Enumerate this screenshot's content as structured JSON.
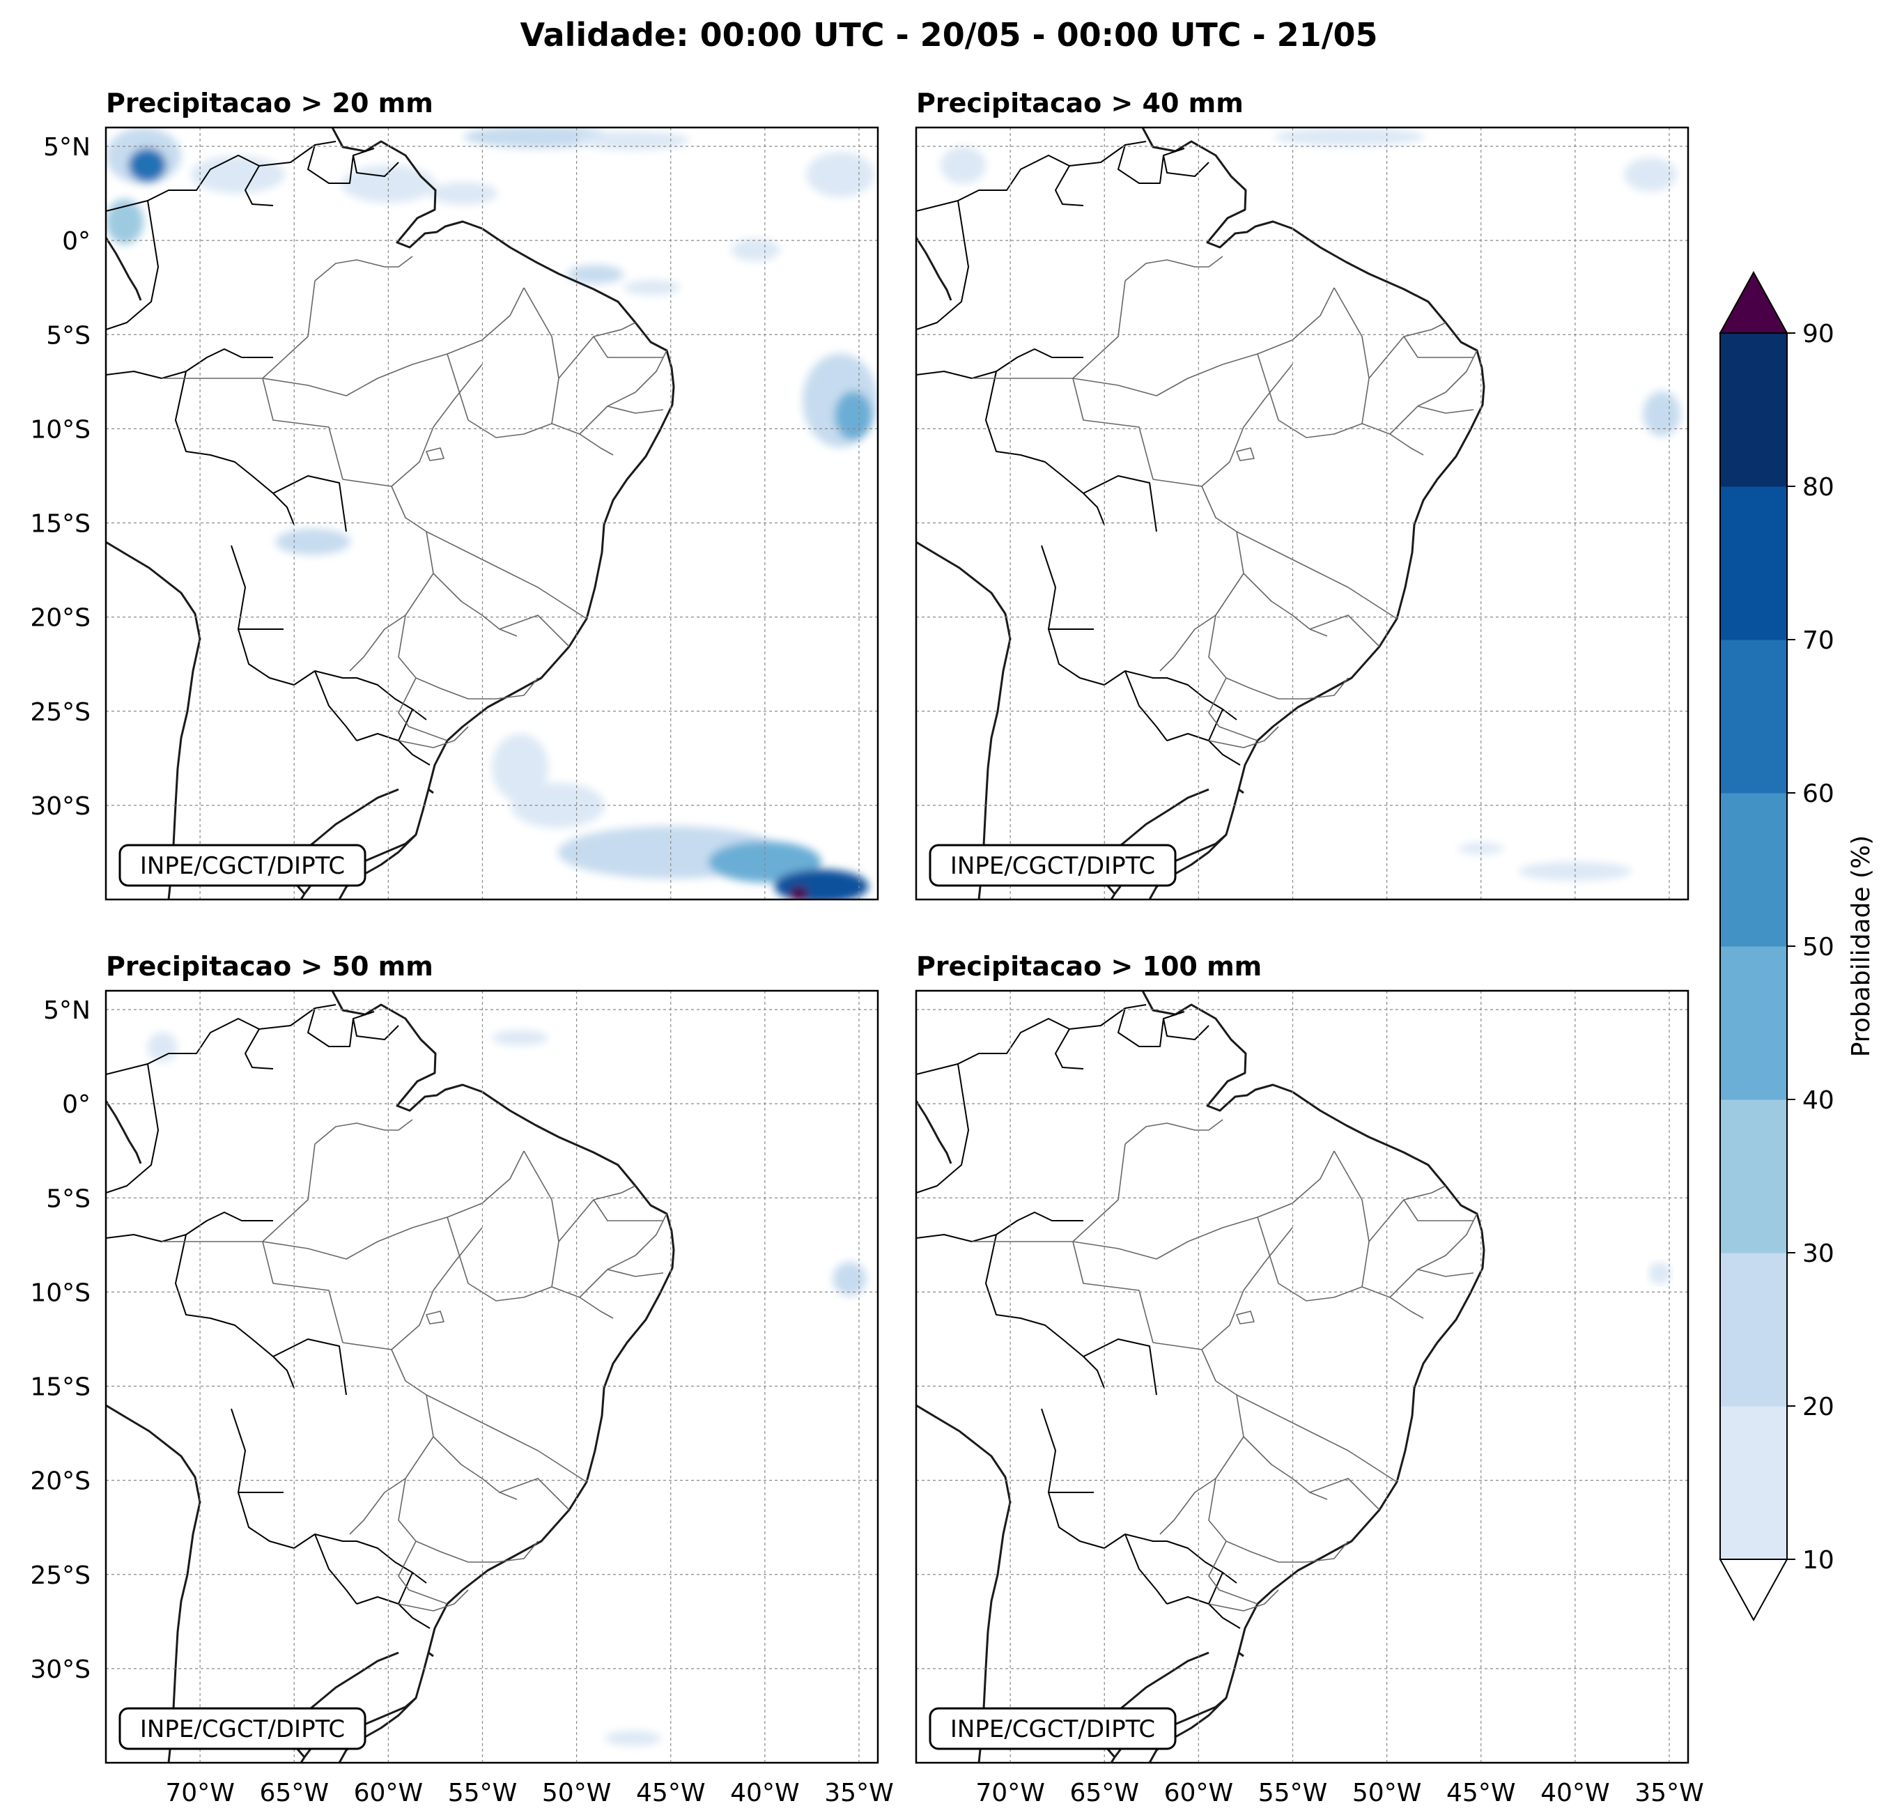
{
  "figure": {
    "title": "Validade: 00:00 UTC - 20/05 - 00:00 UTC - 21/05"
  },
  "panels": [
    {
      "id": "p20",
      "title": "Precipitacao > 20 mm",
      "credit": "INPE/CGCT/DIPTC"
    },
    {
      "id": "p40",
      "title": "Precipitacao > 40 mm",
      "credit": "INPE/CGCT/DIPTC"
    },
    {
      "id": "p50",
      "title": "Precipitacao > 50 mm",
      "credit": "INPE/CGCT/DIPTC"
    },
    {
      "id": "p100",
      "title": "Precipitacao > 100 mm",
      "credit": "INPE/CGCT/DIPTC"
    }
  ],
  "axes": {
    "lat_ticks": [
      5,
      0,
      -5,
      -10,
      -15,
      -20,
      -25,
      -30
    ],
    "lat_labels": [
      "5°N",
      "0°",
      "5°S",
      "10°S",
      "15°S",
      "20°S",
      "25°S",
      "30°S"
    ],
    "lon_ticks": [
      -70,
      -65,
      -60,
      -55,
      -50,
      -45,
      -40,
      -35
    ],
    "lon_labels": [
      "70°W",
      "65°W",
      "60°W",
      "55°W",
      "50°W",
      "45°W",
      "40°W",
      "35°W"
    ],
    "lon_range": [
      -75,
      -34
    ],
    "lat_range": [
      -35,
      6
    ],
    "gridlines": true
  },
  "colorbar": {
    "label": "Probabilidade (%)",
    "levels": [
      10,
      20,
      30,
      40,
      50,
      60,
      70,
      80,
      90
    ],
    "tick_labels": [
      "10",
      "20",
      "30",
      "40",
      "50",
      "60",
      "70",
      "80",
      "90"
    ],
    "colors": [
      "#dce8f5",
      "#c6dbef",
      "#9ecae1",
      "#6baed6",
      "#4292c6",
      "#2171b5",
      "#08519c",
      "#08306b"
    ],
    "under_color": "#ffffff",
    "over_color": "#4a0046",
    "extend": "both"
  },
  "precip_fields": {
    "p20": [
      {
        "lon": -73,
        "lat": 4.5,
        "rx": 2.0,
        "ry": 1.5,
        "level": 1
      },
      {
        "lon": -72.8,
        "lat": 4.0,
        "rx": 1.0,
        "ry": 0.9,
        "level": 5
      },
      {
        "lon": -74,
        "lat": 1.0,
        "rx": 1.0,
        "ry": 1.2,
        "level": 2
      },
      {
        "lon": -68,
        "lat": 3.5,
        "rx": 2.5,
        "ry": 1.0,
        "level": 0
      },
      {
        "lon": -60,
        "lat": 3.0,
        "rx": 2.5,
        "ry": 1.0,
        "level": 0
      },
      {
        "lon": -52,
        "lat": 5.5,
        "rx": 4.0,
        "ry": 0.6,
        "level": 1
      },
      {
        "lon": -47,
        "lat": 5.3,
        "rx": 3.0,
        "ry": 0.5,
        "level": 0
      },
      {
        "lon": -36,
        "lat": 3.5,
        "rx": 1.8,
        "ry": 1.2,
        "level": 0
      },
      {
        "lon": -56,
        "lat": 2.5,
        "rx": 1.8,
        "ry": 0.6,
        "level": 0
      },
      {
        "lon": -49,
        "lat": -1.8,
        "rx": 1.5,
        "ry": 0.5,
        "level": 1
      },
      {
        "lon": -46,
        "lat": -2.5,
        "rx": 1.5,
        "ry": 0.4,
        "level": 0
      },
      {
        "lon": -36,
        "lat": -8.5,
        "rx": 2.0,
        "ry": 2.5,
        "level": 1
      },
      {
        "lon": -35.3,
        "lat": -9.3,
        "rx": 1.0,
        "ry": 1.3,
        "level": 3
      },
      {
        "lon": -40.5,
        "lat": -0.5,
        "rx": 1.3,
        "ry": 0.6,
        "level": 0
      },
      {
        "lon": -64,
        "lat": -16,
        "rx": 2.0,
        "ry": 0.7,
        "level": 1
      },
      {
        "lon": -53,
        "lat": -28,
        "rx": 1.5,
        "ry": 1.8,
        "level": 0
      },
      {
        "lon": -51,
        "lat": -30,
        "rx": 2.5,
        "ry": 1.2,
        "level": 0
      },
      {
        "lon": -45,
        "lat": -32.5,
        "rx": 6.0,
        "ry": 1.4,
        "level": 1
      },
      {
        "lon": -40,
        "lat": -33,
        "rx": 3.0,
        "ry": 1.1,
        "level": 3
      },
      {
        "lon": -37,
        "lat": -34.3,
        "rx": 2.5,
        "ry": 0.9,
        "level": 6
      },
      {
        "lon": -38.2,
        "lat": -34.7,
        "rx": 0.5,
        "ry": 0.4,
        "level": 8
      }
    ],
    "p40": [
      {
        "lon": -72.5,
        "lat": 4.0,
        "rx": 1.2,
        "ry": 1.0,
        "level": 0
      },
      {
        "lon": -52,
        "lat": 5.5,
        "rx": 4.0,
        "ry": 0.5,
        "level": 0
      },
      {
        "lon": -36,
        "lat": 3.5,
        "rx": 1.4,
        "ry": 0.9,
        "level": 0
      },
      {
        "lon": -35.4,
        "lat": -9.2,
        "rx": 1.0,
        "ry": 1.2,
        "level": 1
      },
      {
        "lon": -40,
        "lat": -33.5,
        "rx": 3.0,
        "ry": 0.5,
        "level": 0
      },
      {
        "lon": -45,
        "lat": -32.3,
        "rx": 1.2,
        "ry": 0.3,
        "level": 0
      }
    ],
    "p50": [
      {
        "lon": -72,
        "lat": 3.0,
        "rx": 0.8,
        "ry": 0.8,
        "level": 0
      },
      {
        "lon": -53,
        "lat": 3.5,
        "rx": 1.5,
        "ry": 0.4,
        "level": 0
      },
      {
        "lon": -35.5,
        "lat": -9.3,
        "rx": 0.9,
        "ry": 0.9,
        "level": 1
      },
      {
        "lon": -47,
        "lat": -33.7,
        "rx": 1.5,
        "ry": 0.4,
        "level": 0
      }
    ],
    "p100": [
      {
        "lon": -35.5,
        "lat": -9.0,
        "rx": 0.6,
        "ry": 0.6,
        "level": 0
      }
    ]
  }
}
